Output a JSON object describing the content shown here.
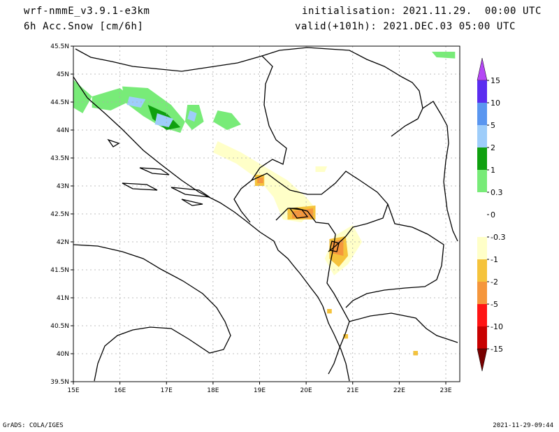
{
  "header": {
    "model": "wrf-nmmE_v3.9.1-e3km",
    "field": "6h Acc.Snow [cm/6h]",
    "init": "initialisation: 2021.11.29.  00:00 UTC",
    "valid": "valid(+101h): 2021.DEC.03 05:00 UTC"
  },
  "footer": {
    "credit": "GrADS: COLA/IGES",
    "timestamp": "2021-11-29-09:44"
  },
  "chart_data": {
    "type": "heatmap",
    "title": "6h Acc.Snow [cm/6h]",
    "xlabel": "",
    "ylabel": "",
    "xlim": [
      15,
      23.3
    ],
    "ylim": [
      39.5,
      45.5
    ],
    "x_ticks": [
      "15E",
      "16E",
      "17E",
      "18E",
      "19E",
      "20E",
      "21E",
      "22E",
      "23E"
    ],
    "y_ticks": [
      "39.5N",
      "40N",
      "40.5N",
      "41N",
      "41.5N",
      "42N",
      "42.5N",
      "43N",
      "43.5N",
      "44N",
      "44.5N",
      "45N",
      "45.5N"
    ],
    "grid": true,
    "colorbar": {
      "labels": [
        "15",
        "10",
        "5",
        "2",
        "1",
        "0.3",
        "0",
        "-0.3",
        "-1",
        "-2",
        "-5",
        "-10",
        "-15"
      ],
      "colors": [
        "#5a2df0",
        "#5a96f0",
        "#9ecdfa",
        "#0fa00f",
        "#78eb78",
        "#ffffff",
        "#ffffff",
        "#ffffc8",
        "#f5c33c",
        "#f5963c",
        "#ff1414",
        "#c80000",
        "#a00000"
      ],
      "top_arrow_color": "#b446f5",
      "bottom_arrow_color": "#780000"
    },
    "regions": [
      {
        "level": "0.3",
        "color": "#78eb78",
        "points": [
          [
            15.0,
            44.9
          ],
          [
            15.4,
            44.6
          ],
          [
            15.2,
            44.3
          ],
          [
            15.0,
            44.4
          ]
        ]
      },
      {
        "level": "0.3",
        "color": "#78eb78",
        "points": [
          [
            15.4,
            44.6
          ],
          [
            16.0,
            44.75
          ],
          [
            16.3,
            44.55
          ],
          [
            15.8,
            44.35
          ],
          [
            15.4,
            44.4
          ]
        ]
      },
      {
        "level": "0.3",
        "color": "#78eb78",
        "points": [
          [
            16.05,
            44.78
          ],
          [
            16.6,
            44.75
          ],
          [
            17.1,
            44.45
          ],
          [
            17.4,
            44.15
          ],
          [
            17.3,
            43.95
          ],
          [
            16.9,
            44.05
          ],
          [
            16.5,
            44.25
          ],
          [
            16.1,
            44.5
          ]
        ]
      },
      {
        "level": "0.3",
        "color": "#78eb78",
        "points": [
          [
            17.45,
            44.45
          ],
          [
            17.7,
            44.45
          ],
          [
            17.8,
            44.15
          ],
          [
            17.55,
            44.0
          ],
          [
            17.4,
            44.15
          ]
        ]
      },
      {
        "level": "0.3",
        "color": "#78eb78",
        "points": [
          [
            18.1,
            44.35
          ],
          [
            18.4,
            44.3
          ],
          [
            18.6,
            44.1
          ],
          [
            18.3,
            44.0
          ],
          [
            18.0,
            44.15
          ]
        ]
      },
      {
        "level": "0.3",
        "color": "#78eb78",
        "points": [
          [
            22.7,
            45.4
          ],
          [
            23.2,
            45.4
          ],
          [
            23.2,
            45.28
          ],
          [
            22.8,
            45.3
          ]
        ]
      },
      {
        "level": "1",
        "color": "#0fa00f",
        "points": [
          [
            16.6,
            44.45
          ],
          [
            17.0,
            44.3
          ],
          [
            17.3,
            44.05
          ],
          [
            17.0,
            44.0
          ],
          [
            16.7,
            44.2
          ]
        ]
      },
      {
        "level": "2",
        "color": "#9ecdfa",
        "points": [
          [
            16.2,
            44.6
          ],
          [
            16.55,
            44.55
          ],
          [
            16.45,
            44.4
          ],
          [
            16.15,
            44.45
          ]
        ]
      },
      {
        "level": "2",
        "color": "#9ecdfa",
        "points": [
          [
            16.8,
            44.3
          ],
          [
            17.15,
            44.2
          ],
          [
            17.05,
            44.05
          ],
          [
            16.75,
            44.1
          ]
        ]
      },
      {
        "level": "2",
        "color": "#9ecdfa",
        "points": [
          [
            17.5,
            44.35
          ],
          [
            17.65,
            44.3
          ],
          [
            17.6,
            44.15
          ],
          [
            17.45,
            44.2
          ]
        ]
      },
      {
        "level": "-0.3",
        "color": "#ffffc8",
        "points": [
          [
            18.1,
            43.8
          ],
          [
            18.6,
            43.6
          ],
          [
            19.2,
            43.3
          ],
          [
            19.6,
            43.1
          ],
          [
            20.0,
            42.8
          ],
          [
            20.2,
            42.6
          ],
          [
            19.9,
            42.35
          ],
          [
            19.5,
            42.4
          ],
          [
            19.3,
            42.8
          ],
          [
            19.0,
            43.1
          ],
          [
            18.5,
            43.4
          ],
          [
            18.0,
            43.6
          ]
        ]
      },
      {
        "level": "-0.3",
        "color": "#ffffc8",
        "points": [
          [
            20.6,
            42.1
          ],
          [
            21.0,
            42.3
          ],
          [
            21.2,
            42.0
          ],
          [
            20.9,
            41.6
          ],
          [
            20.6,
            41.4
          ],
          [
            20.4,
            41.7
          ]
        ]
      },
      {
        "level": "-0.3",
        "color": "#ffffc8",
        "points": [
          [
            20.2,
            43.35
          ],
          [
            20.45,
            43.35
          ],
          [
            20.4,
            43.25
          ],
          [
            20.2,
            43.25
          ]
        ]
      },
      {
        "level": "-1",
        "color": "#f5c33c",
        "points": [
          [
            18.9,
            43.2
          ],
          [
            19.1,
            43.2
          ],
          [
            19.1,
            43.0
          ],
          [
            18.9,
            43.0
          ]
        ]
      },
      {
        "level": "-1",
        "color": "#f5c33c",
        "points": [
          [
            19.6,
            42.6
          ],
          [
            20.2,
            42.65
          ],
          [
            20.2,
            42.4
          ],
          [
            19.6,
            42.4
          ]
        ]
      },
      {
        "level": "-1",
        "color": "#f5c33c",
        "points": [
          [
            20.5,
            42.05
          ],
          [
            20.85,
            42.1
          ],
          [
            20.9,
            41.75
          ],
          [
            20.7,
            41.55
          ],
          [
            20.5,
            41.7
          ]
        ]
      },
      {
        "level": "-1",
        "color": "#f5c33c",
        "points": [
          [
            20.45,
            40.8
          ],
          [
            20.55,
            40.8
          ],
          [
            20.55,
            40.72
          ],
          [
            20.45,
            40.72
          ]
        ]
      },
      {
        "level": "-1",
        "color": "#f5c33c",
        "points": [
          [
            20.8,
            40.35
          ],
          [
            20.9,
            40.35
          ],
          [
            20.9,
            40.27
          ],
          [
            20.8,
            40.27
          ]
        ]
      },
      {
        "level": "-1",
        "color": "#f5c33c",
        "points": [
          [
            22.3,
            40.05
          ],
          [
            22.4,
            40.05
          ],
          [
            22.4,
            39.97
          ],
          [
            22.3,
            39.97
          ]
        ]
      },
      {
        "level": "-2",
        "color": "#f5963c",
        "points": [
          [
            19.7,
            42.55
          ],
          [
            20.15,
            42.6
          ],
          [
            20.15,
            42.42
          ],
          [
            19.7,
            42.42
          ]
        ]
      },
      {
        "level": "-2",
        "color": "#f5963c",
        "points": [
          [
            20.55,
            42.0
          ],
          [
            20.8,
            42.05
          ],
          [
            20.8,
            41.75
          ],
          [
            20.55,
            41.8
          ]
        ]
      },
      {
        "level": "-2",
        "color": "#f5963c",
        "points": [
          [
            18.95,
            43.15
          ],
          [
            19.08,
            43.15
          ],
          [
            19.08,
            43.05
          ],
          [
            18.95,
            43.05
          ]
        ]
      }
    ]
  }
}
